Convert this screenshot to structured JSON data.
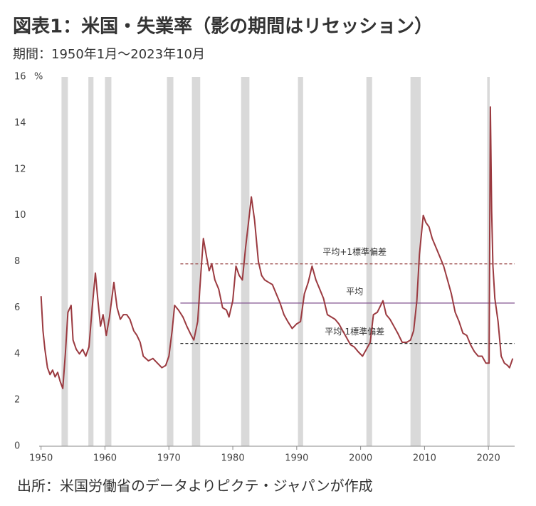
{
  "chart_data": {
    "type": "line",
    "title": "図表1：米国・失業率（影の期間はリセッション）",
    "subtitle": "期間：1950年1月～2023年10月",
    "y_unit": "%",
    "source": "出所：米国労働省のデータよりピクテ・ジャパンが作成",
    "xlim": [
      1949.7,
      2024.1
    ],
    "xticks": [
      1950,
      1960,
      1970,
      1980,
      1990,
      2000,
      2010,
      2020
    ],
    "ylim": [
      0,
      16
    ],
    "yticks": [
      0,
      2,
      4,
      6,
      8,
      10,
      12,
      14,
      16
    ],
    "series": [
      {
        "name": "失業率",
        "color": "#9b3a40",
        "x": [
          1950.0,
          1950.3,
          1950.6,
          1951.0,
          1951.4,
          1951.8,
          1952.2,
          1952.6,
          1953.0,
          1953.4,
          1953.8,
          1954.2,
          1954.7,
          1955.0,
          1955.5,
          1956.0,
          1956.5,
          1957.0,
          1957.5,
          1958.0,
          1958.5,
          1958.9,
          1959.3,
          1959.7,
          1960.2,
          1960.7,
          1961.4,
          1961.9,
          1962.4,
          1962.9,
          1963.4,
          1963.9,
          1964.5,
          1965.0,
          1965.5,
          1966.0,
          1966.8,
          1967.5,
          1968.2,
          1968.9,
          1969.5,
          1970.0,
          1970.5,
          1970.9,
          1971.5,
          1972.2,
          1972.8,
          1973.5,
          1973.9,
          1974.5,
          1975.0,
          1975.4,
          1975.9,
          1976.3,
          1976.7,
          1977.2,
          1977.8,
          1978.4,
          1979.0,
          1979.4,
          1980.0,
          1980.5,
          1981.0,
          1981.5,
          1982.0,
          1982.5,
          1982.9,
          1983.4,
          1984.0,
          1984.5,
          1985.0,
          1985.6,
          1986.2,
          1986.8,
          1987.4,
          1988.0,
          1988.6,
          1989.3,
          1990.0,
          1990.6,
          1991.2,
          1991.8,
          1992.4,
          1993.0,
          1993.6,
          1994.2,
          1994.8,
          1995.4,
          1996.0,
          1996.6,
          1997.2,
          1997.8,
          1998.4,
          1999.0,
          1999.6,
          2000.3,
          2000.9,
          2001.5,
          2002.0,
          2002.6,
          2003.5,
          2004.0,
          2004.6,
          2005.2,
          2005.8,
          2006.5,
          2007.2,
          2007.8,
          2008.3,
          2008.8,
          2009.2,
          2009.8,
          2010.2,
          2010.7,
          2011.2,
          2011.8,
          2012.4,
          2013.0,
          2013.6,
          2014.2,
          2014.8,
          2015.4,
          2016.0,
          2016.6,
          2017.2,
          2017.8,
          2018.4,
          2019.0,
          2019.6,
          2020.1,
          2020.3,
          2020.5,
          2020.7,
          2021.0,
          2021.5,
          2022.0,
          2022.5,
          2023.0,
          2023.3,
          2023.8
        ],
        "values": [
          6.5,
          5.0,
          4.2,
          3.4,
          3.1,
          3.3,
          3.0,
          3.2,
          2.8,
          2.5,
          4.0,
          5.8,
          6.1,
          4.6,
          4.2,
          4.0,
          4.2,
          3.9,
          4.3,
          6.0,
          7.5,
          6.3,
          5.2,
          5.7,
          4.8,
          5.6,
          7.1,
          6.0,
          5.5,
          5.7,
          5.7,
          5.5,
          5.0,
          4.8,
          4.5,
          3.9,
          3.7,
          3.8,
          3.6,
          3.4,
          3.5,
          3.9,
          5.0,
          6.1,
          5.9,
          5.6,
          5.2,
          4.8,
          4.6,
          5.4,
          7.5,
          9.0,
          8.2,
          7.6,
          7.9,
          7.2,
          6.8,
          6.0,
          5.9,
          5.6,
          6.3,
          7.8,
          7.4,
          7.2,
          8.6,
          9.8,
          10.8,
          9.8,
          8.0,
          7.4,
          7.2,
          7.1,
          7.0,
          6.6,
          6.2,
          5.7,
          5.4,
          5.1,
          5.3,
          5.4,
          6.6,
          7.1,
          7.8,
          7.2,
          6.8,
          6.4,
          5.7,
          5.6,
          5.5,
          5.3,
          5.0,
          4.7,
          4.4,
          4.3,
          4.1,
          3.9,
          4.2,
          4.5,
          5.7,
          5.8,
          6.3,
          5.7,
          5.5,
          5.2,
          4.9,
          4.5,
          4.5,
          4.6,
          5.0,
          6.3,
          8.3,
          10.0,
          9.7,
          9.5,
          9.0,
          8.6,
          8.2,
          7.8,
          7.2,
          6.6,
          5.8,
          5.4,
          4.9,
          4.8,
          4.4,
          4.1,
          3.9,
          3.9,
          3.6,
          3.6,
          14.7,
          10.2,
          7.8,
          6.4,
          5.4,
          3.9,
          3.6,
          3.5,
          3.4,
          3.8
        ]
      }
    ],
    "recessions": [
      [
        1953.2,
        1954.2
      ],
      [
        1957.4,
        1958.2
      ],
      [
        1960.0,
        1961.0
      ],
      [
        1969.7,
        1970.7
      ],
      [
        1973.6,
        1974.9
      ],
      [
        1981.3,
        1982.6
      ],
      [
        1990.2,
        1991.0
      ],
      [
        2000.9,
        2001.8
      ],
      [
        2007.8,
        2009.4
      ],
      [
        2019.8,
        2020.2
      ]
    ],
    "reference_lines": [
      {
        "label": "平均+1標準偏差",
        "value": 7.9,
        "x_start": 1971.8,
        "color": "#9b4a4a",
        "dashed": true
      },
      {
        "label": "平均",
        "value": 6.2,
        "x_start": 1971.8,
        "color": "#7b4a8a",
        "dashed": false
      },
      {
        "label": "平均-1標準偏差",
        "value": 4.45,
        "x_start": 1971.8,
        "color": "#333333",
        "dashed": true
      }
    ],
    "recession_color": "#d9d9d9"
  }
}
